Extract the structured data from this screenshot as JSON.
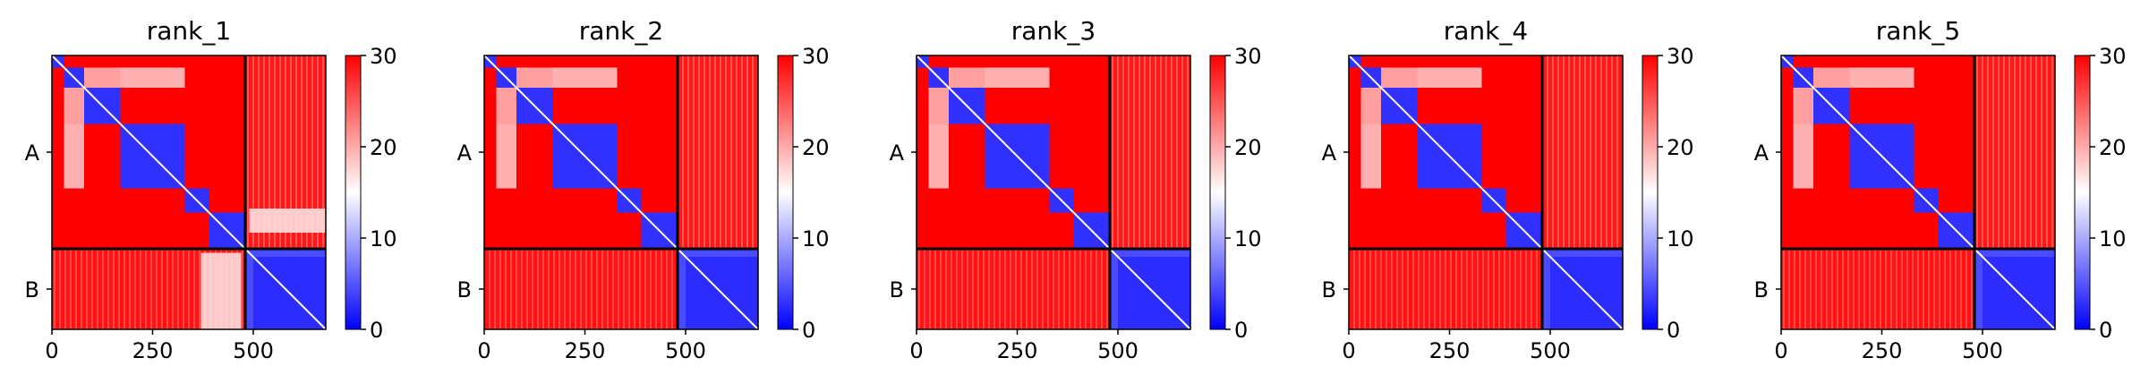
{
  "chart_data": {
    "type": "heatmap",
    "colormap": [
      "#0000ff",
      "#ffffff",
      "#ff0000"
    ],
    "color_range": [
      0,
      30
    ],
    "colorbar_ticks": [
      "0",
      "10",
      "20",
      "30"
    ],
    "x_ticks": [
      "0",
      "250",
      "500"
    ],
    "chain_labels": [
      "A",
      "B"
    ],
    "chain_boundary": 480,
    "sequence_length": 680,
    "panels": [
      {
        "title": "rank_1"
      },
      {
        "title": "rank_2"
      },
      {
        "title": "rank_3"
      },
      {
        "title": "rank_4"
      },
      {
        "title": "rank_5"
      }
    ]
  }
}
